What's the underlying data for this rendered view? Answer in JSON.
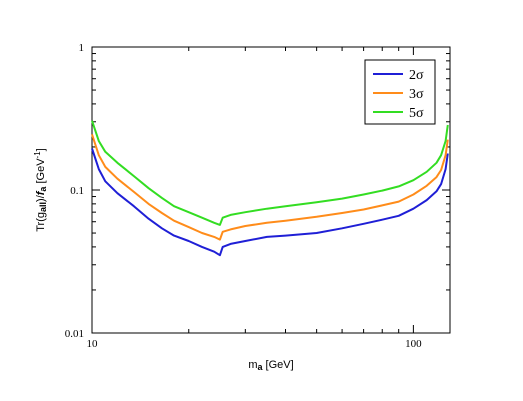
{
  "chart_data": {
    "type": "line",
    "xlabel": "m_a [GeV]",
    "ylabel": "Tr(g_aII)/f_a [GeV^-1]",
    "xscale": "log",
    "yscale": "log",
    "xlim": [
      10,
      130
    ],
    "ylim": [
      0.01,
      1
    ],
    "x_tick_labels": [
      "10",
      "100"
    ],
    "y_tick_labels": [
      "0.01",
      "0.1",
      "1"
    ],
    "grid": false,
    "legend_position": "top-right",
    "series": [
      {
        "name": "2σ",
        "color": "#1f1fd6",
        "points": [
          [
            10,
            0.195
          ],
          [
            10.5,
            0.14
          ],
          [
            11,
            0.115
          ],
          [
            12,
            0.095
          ],
          [
            13.5,
            0.077
          ],
          [
            15,
            0.063
          ],
          [
            16.5,
            0.054
          ],
          [
            18,
            0.048
          ],
          [
            20,
            0.044
          ],
          [
            22,
            0.04
          ],
          [
            24,
            0.037
          ],
          [
            25,
            0.035
          ],
          [
            25.5,
            0.04
          ],
          [
            27,
            0.042
          ],
          [
            30,
            0.044
          ],
          [
            35,
            0.047
          ],
          [
            40,
            0.048
          ],
          [
            50,
            0.05
          ],
          [
            60,
            0.054
          ],
          [
            70,
            0.058
          ],
          [
            80,
            0.062
          ],
          [
            90,
            0.066
          ],
          [
            100,
            0.074
          ],
          [
            110,
            0.085
          ],
          [
            118,
            0.098
          ],
          [
            122,
            0.11
          ],
          [
            126,
            0.14
          ],
          [
            128,
            0.18
          ]
        ]
      },
      {
        "name": "3σ",
        "color": "#ff8c1a",
        "points": [
          [
            10,
            0.245
          ],
          [
            10.5,
            0.175
          ],
          [
            11,
            0.145
          ],
          [
            12,
            0.12
          ],
          [
            13.5,
            0.097
          ],
          [
            15,
            0.08
          ],
          [
            16.5,
            0.069
          ],
          [
            18,
            0.061
          ],
          [
            20,
            0.055
          ],
          [
            22,
            0.05
          ],
          [
            24,
            0.047
          ],
          [
            25,
            0.045
          ],
          [
            25.5,
            0.051
          ],
          [
            27,
            0.053
          ],
          [
            30,
            0.056
          ],
          [
            35,
            0.059
          ],
          [
            40,
            0.061
          ],
          [
            50,
            0.065
          ],
          [
            60,
            0.069
          ],
          [
            70,
            0.073
          ],
          [
            80,
            0.078
          ],
          [
            90,
            0.083
          ],
          [
            100,
            0.093
          ],
          [
            110,
            0.107
          ],
          [
            118,
            0.123
          ],
          [
            122,
            0.138
          ],
          [
            126,
            0.175
          ],
          [
            128,
            0.225
          ]
        ]
      },
      {
        "name": "5σ",
        "color": "#33dd22",
        "points": [
          [
            10,
            0.305
          ],
          [
            10.5,
            0.22
          ],
          [
            11,
            0.185
          ],
          [
            12,
            0.155
          ],
          [
            13.5,
            0.125
          ],
          [
            15,
            0.103
          ],
          [
            16.5,
            0.088
          ],
          [
            18,
            0.077
          ],
          [
            20,
            0.07
          ],
          [
            22,
            0.064
          ],
          [
            24,
            0.059
          ],
          [
            25,
            0.057
          ],
          [
            25.5,
            0.064
          ],
          [
            27,
            0.067
          ],
          [
            30,
            0.07
          ],
          [
            35,
            0.074
          ],
          [
            40,
            0.077
          ],
          [
            50,
            0.082
          ],
          [
            60,
            0.087
          ],
          [
            70,
            0.093
          ],
          [
            80,
            0.099
          ],
          [
            90,
            0.106
          ],
          [
            100,
            0.117
          ],
          [
            110,
            0.134
          ],
          [
            118,
            0.155
          ],
          [
            122,
            0.175
          ],
          [
            126,
            0.22
          ],
          [
            128,
            0.285
          ]
        ]
      }
    ]
  }
}
